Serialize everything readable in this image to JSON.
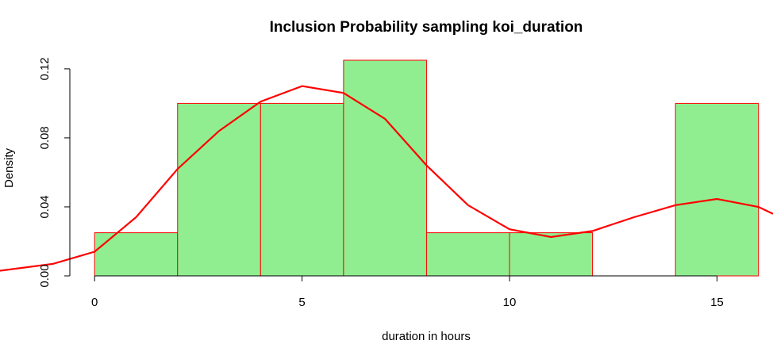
{
  "chart_data": {
    "type": "histogram",
    "title": "Inclusion Probability sampling koi_duration",
    "xlabel": "duration in hours",
    "ylabel": "Density",
    "bins": [
      0,
      2,
      4,
      6,
      8,
      10,
      12,
      14,
      16
    ],
    "values": [
      0.025,
      0.1,
      0.1,
      0.125,
      0.025,
      0.025,
      0,
      0.1
    ],
    "color": "#90ee90",
    "edgecolor": "#ff0000",
    "xlim": [
      -2.28,
      16.35
    ],
    "ylim": [
      0,
      0.125
    ],
    "xticks": [
      0,
      5,
      10,
      15
    ],
    "yticks": [
      {
        "value": 0,
        "label": "0.00"
      },
      0.04,
      0.08,
      0.12
    ],
    "density_curve": {
      "color": "#ff0000",
      "x": [
        -2.28,
        -1,
        0,
        1,
        2,
        3,
        4,
        5,
        6,
        7,
        8,
        9,
        10,
        11,
        12,
        13,
        14,
        15,
        16,
        16.35
      ],
      "y": [
        0.003,
        0.007,
        0.014,
        0.034,
        0.062,
        0.084,
        0.101,
        0.11,
        0.106,
        0.091,
        0.064,
        0.041,
        0.027,
        0.0225,
        0.026,
        0.034,
        0.041,
        0.0446,
        0.04,
        0.036
      ]
    }
  }
}
